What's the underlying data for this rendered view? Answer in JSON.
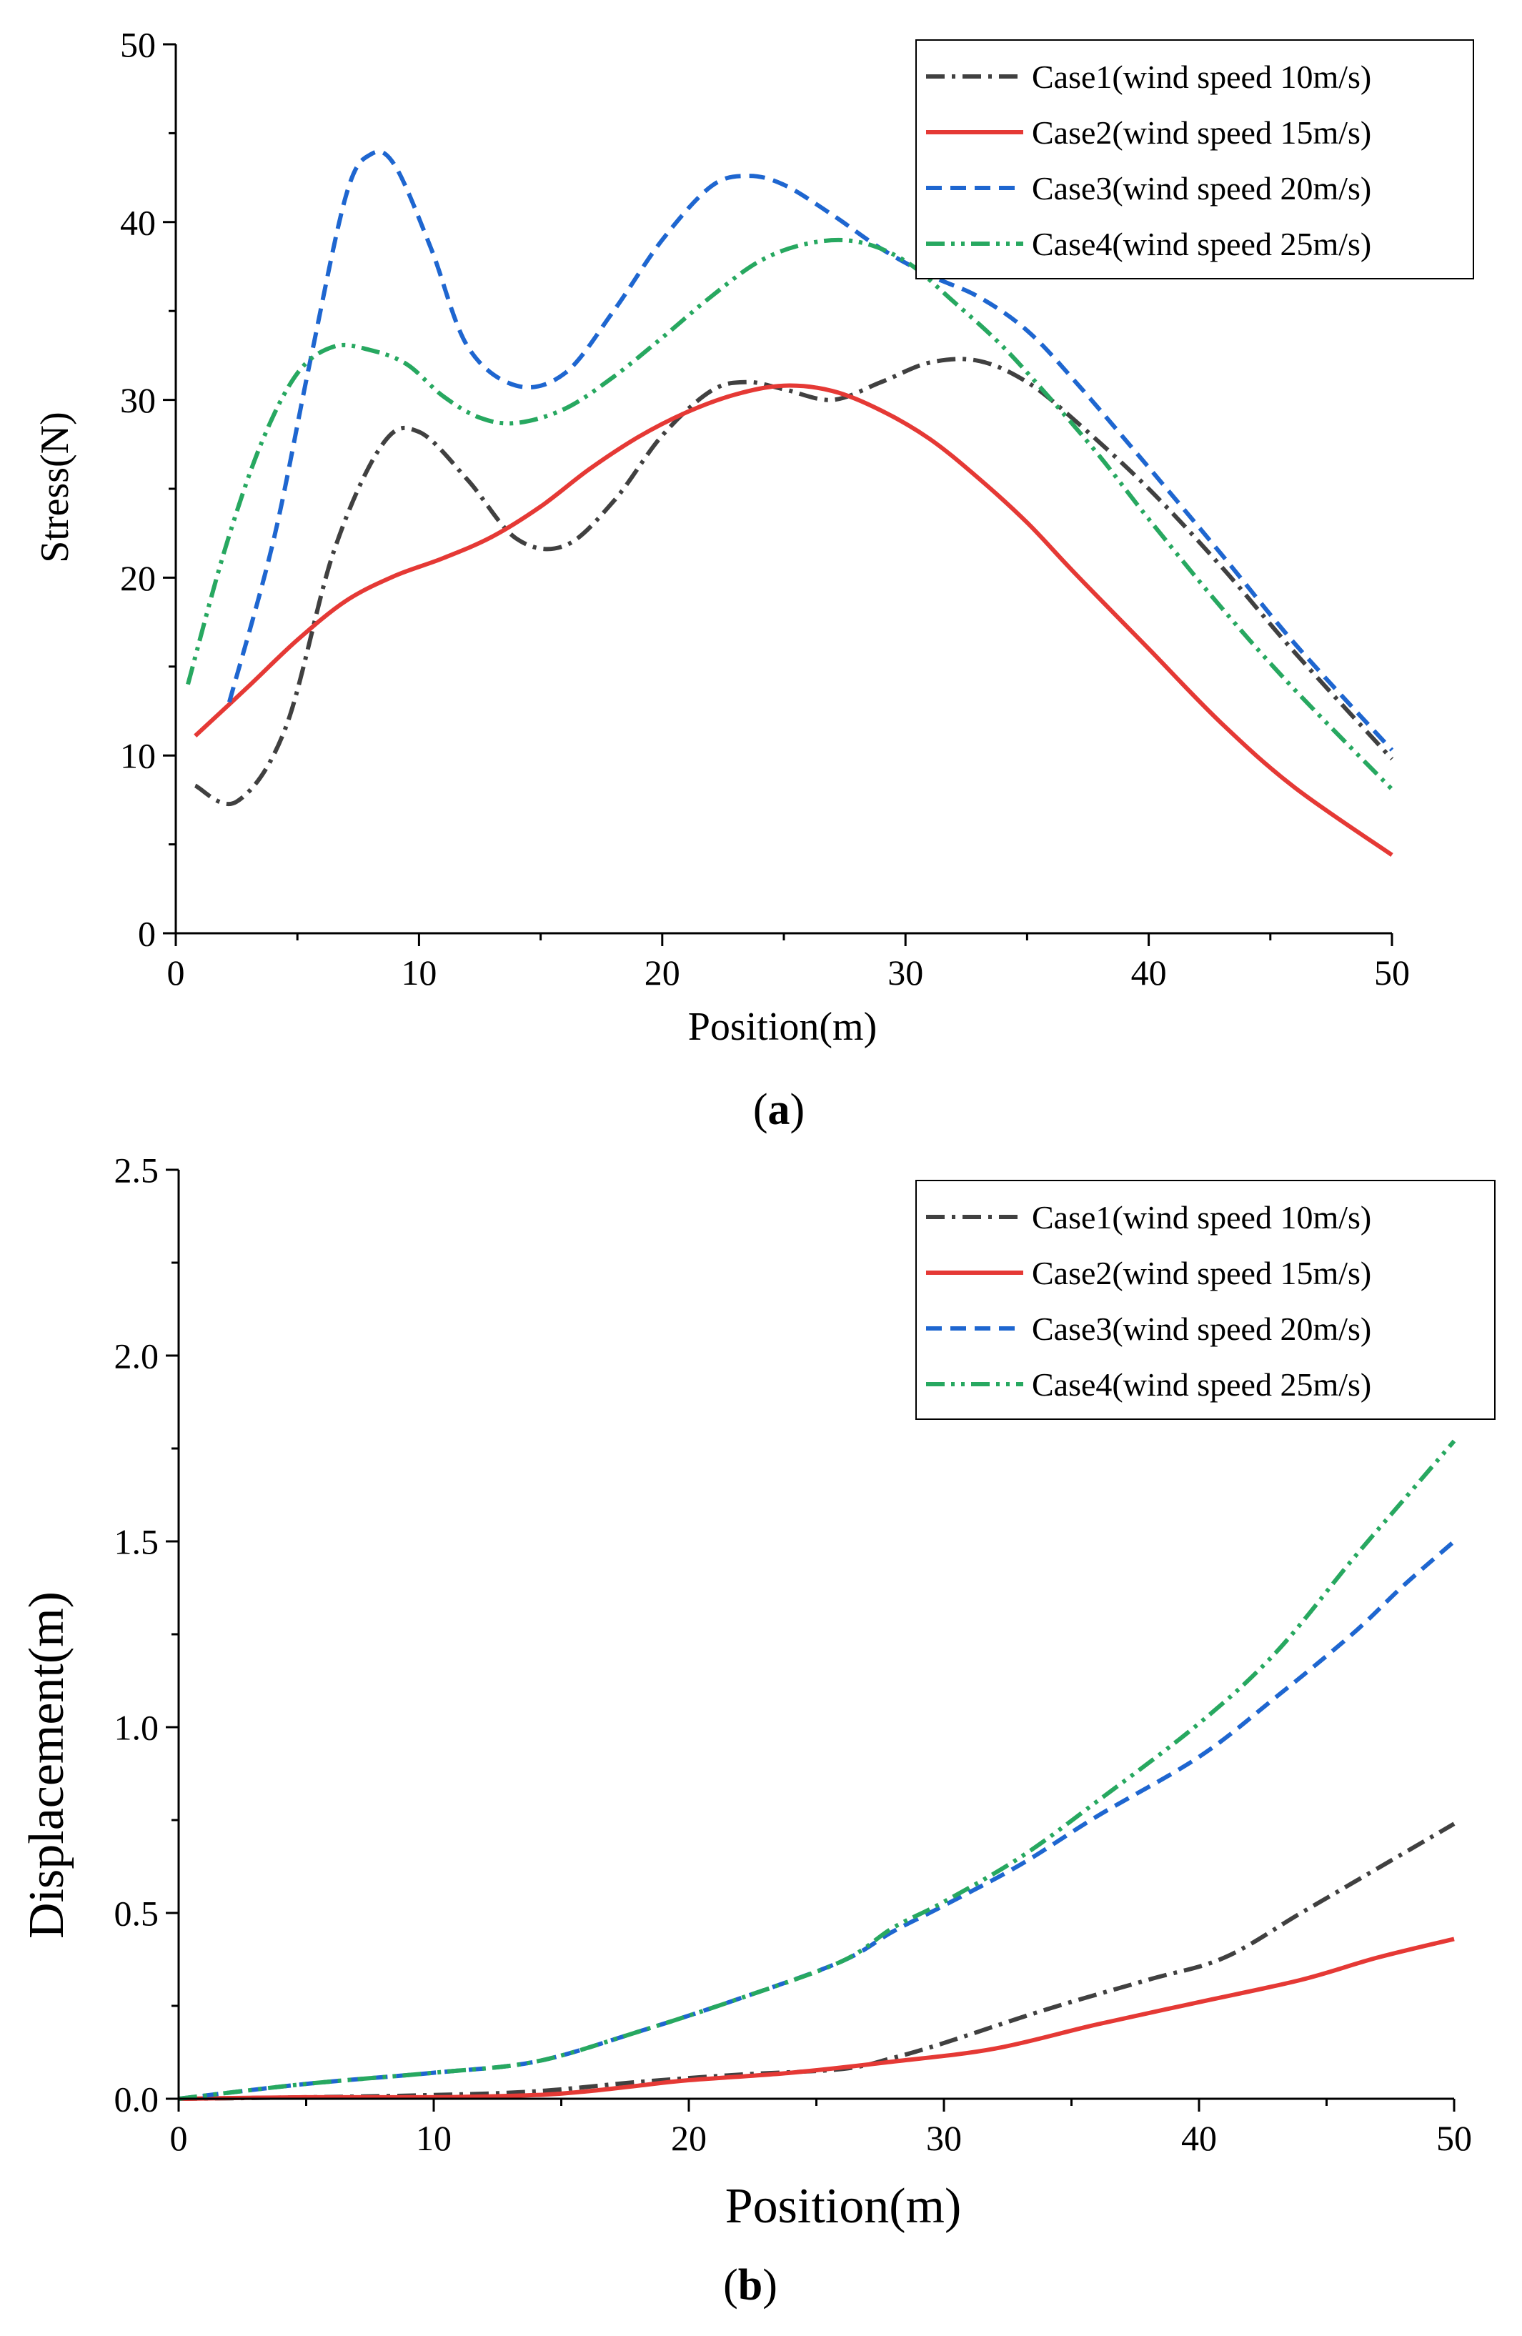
{
  "chart_data": [
    {
      "type": "line",
      "panel_label": "a",
      "xlabel": "Position(m)",
      "ylabel": "Stress(N)",
      "xlim": [
        0,
        50
      ],
      "ylim": [
        0,
        50
      ],
      "xticks": [
        0,
        10,
        20,
        30,
        40,
        50
      ],
      "yticks": [
        0,
        10,
        20,
        30,
        40,
        50
      ],
      "legend": "top-right",
      "grid": false,
      "series": [
        {
          "name": "Case1(wind speed 10m/s)",
          "color": "#404040",
          "dash": "dashdot",
          "x": [
            0.8,
            2.5,
            4.5,
            6.5,
            8.5,
            10,
            12,
            14,
            16,
            18,
            20,
            22,
            23.5,
            25,
            27,
            29,
            31,
            33,
            35,
            37,
            40,
            43,
            46,
            50
          ],
          "y": [
            8.3,
            7.4,
            11.5,
            21.5,
            27.5,
            28.2,
            25.5,
            22.2,
            21.8,
            24.3,
            28.0,
            30.5,
            31.0,
            30.6,
            30.0,
            31.0,
            32.1,
            32.2,
            31.0,
            28.8,
            25.0,
            20.6,
            15.8,
            9.8
          ]
        },
        {
          "name": "Case2(wind speed 15m/s)",
          "color": "#e53935",
          "dash": "solid",
          "x": [
            0.8,
            3,
            5,
            7,
            9,
            11,
            13,
            15,
            17,
            19,
            21,
            23,
            25,
            27,
            29,
            31,
            33,
            35,
            37,
            40,
            43,
            46,
            50
          ],
          "y": [
            11.1,
            13.9,
            16.5,
            18.7,
            20.1,
            21.1,
            22.3,
            24.0,
            26.1,
            27.9,
            29.3,
            30.3,
            30.8,
            30.5,
            29.4,
            27.8,
            25.6,
            23.1,
            20.2,
            16.0,
            11.8,
            8.2,
            4.4
          ]
        },
        {
          "name": "Case3(wind speed 20m/s)",
          "color": "#1e66d0",
          "dash": "dash",
          "x": [
            2.2,
            4,
            5.5,
            7,
            8,
            9,
            10.5,
            12,
            14,
            16,
            18,
            20,
            22,
            23.5,
            25,
            27,
            29,
            31,
            33,
            35,
            37,
            40,
            43,
            46,
            50
          ],
          "y": [
            13.0,
            22.0,
            32.0,
            41.5,
            43.8,
            43.2,
            38.5,
            33.0,
            30.8,
            31.5,
            35.0,
            39.0,
            42.0,
            42.6,
            42.1,
            40.4,
            38.5,
            37.0,
            35.8,
            33.9,
            31.0,
            26.2,
            21.3,
            16.3,
            10.3
          ]
        },
        {
          "name": "Case4(wind speed 25m/s)",
          "color": "#27a860",
          "dash": "dashdotdot",
          "x": [
            0.5,
            2,
            3.5,
            5,
            6.5,
            8,
            9.5,
            11,
            12.5,
            14,
            16,
            18,
            20,
            22,
            24,
            26,
            28,
            30,
            32,
            34,
            36,
            38,
            40,
            43,
            46,
            50
          ],
          "y": [
            14.0,
            21.5,
            27.5,
            31.5,
            33.0,
            32.8,
            32.0,
            30.2,
            29.0,
            28.7,
            29.5,
            31.3,
            33.5,
            35.8,
            37.8,
            38.8,
            38.9,
            37.8,
            35.5,
            33.0,
            30.0,
            26.8,
            23.3,
            18.3,
            13.7,
            8.1
          ]
        }
      ]
    },
    {
      "type": "line",
      "panel_label": "b",
      "xlabel": "Position(m)",
      "ylabel": "Displacement(m)",
      "xlim": [
        0,
        50
      ],
      "ylim": [
        0,
        2.5
      ],
      "xticks": [
        0,
        10,
        20,
        30,
        40,
        50
      ],
      "yticks": [
        0.0,
        0.5,
        1.0,
        1.5,
        2.0,
        2.5
      ],
      "legend": "top-right",
      "grid": false,
      "series": [
        {
          "name": "Case1(wind speed 10m/s)",
          "color": "#404040",
          "dash": "dashdot",
          "x": [
            0,
            5,
            10,
            14,
            18,
            22,
            26,
            28,
            30,
            34,
            38,
            41,
            44,
            47,
            50
          ],
          "y": [
            0.0,
            0.004,
            0.01,
            0.02,
            0.045,
            0.065,
            0.08,
            0.11,
            0.15,
            0.24,
            0.32,
            0.38,
            0.5,
            0.62,
            0.74
          ]
        },
        {
          "name": "Case2(wind speed 15m/s)",
          "color": "#e53935",
          "dash": "solid",
          "x": [
            0,
            5,
            10,
            14,
            16,
            18,
            20,
            24,
            28,
            32,
            36,
            40,
            44,
            47,
            50
          ],
          "y": [
            0.0,
            0.004,
            0.004,
            0.01,
            0.02,
            0.035,
            0.05,
            0.07,
            0.1,
            0.135,
            0.2,
            0.26,
            0.32,
            0.38,
            0.43
          ]
        },
        {
          "name": "Case3(wind speed 20m/s)",
          "color": "#1e66d0",
          "dash": "dash",
          "x": [
            0,
            5,
            10,
            14,
            18,
            22,
            26,
            28,
            30,
            33,
            36,
            40,
            43,
            46,
            48,
            50
          ],
          "y": [
            0.0,
            0.04,
            0.07,
            0.1,
            0.18,
            0.27,
            0.37,
            0.45,
            0.52,
            0.63,
            0.76,
            0.92,
            1.08,
            1.25,
            1.38,
            1.5
          ]
        },
        {
          "name": "Case4(wind speed 25m/s)",
          "color": "#27a860",
          "dash": "dashdotdot",
          "x": [
            0,
            5,
            10,
            14,
            18,
            22,
            26,
            28,
            30,
            33,
            36,
            40,
            43,
            46,
            48,
            50
          ],
          "y": [
            0.0,
            0.04,
            0.07,
            0.1,
            0.18,
            0.27,
            0.37,
            0.46,
            0.53,
            0.65,
            0.8,
            1.01,
            1.2,
            1.45,
            1.61,
            1.77
          ]
        }
      ]
    }
  ]
}
